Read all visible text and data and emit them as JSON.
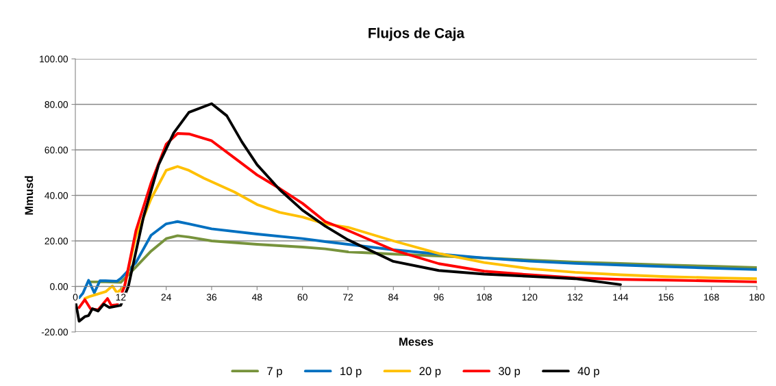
{
  "chart_data": {
    "type": "line",
    "title": "Flujos de Caja",
    "xlabel": "Meses",
    "ylabel": "Mmusd",
    "xlim": [
      0,
      180
    ],
    "xticks": [
      0,
      12,
      24,
      36,
      48,
      60,
      72,
      84,
      96,
      108,
      120,
      132,
      144,
      156,
      168,
      180
    ],
    "ylim": [
      -20,
      100
    ],
    "yticks": [
      {
        "value": -20,
        "label": "-20.00"
      },
      {
        "value": 0,
        "label": "0.00"
      },
      {
        "value": 20,
        "label": "20.00"
      },
      {
        "value": 40,
        "label": "40.00"
      },
      {
        "value": 60,
        "label": "60.00"
      },
      {
        "value": 80,
        "label": "80.00"
      },
      {
        "value": 100,
        "label": "100.00"
      }
    ],
    "grid": "y",
    "legend": "bottom",
    "marker": "none",
    "line_style": "solid",
    "series": [
      {
        "name": "7 p",
        "color": "#77933c",
        "x": [
          4,
          8,
          12,
          16,
          20,
          24,
          27,
          30,
          36,
          48,
          60,
          66,
          72,
          84,
          96,
          108,
          120,
          132,
          144,
          156,
          168,
          180
        ],
        "values": [
          2,
          2,
          1.8,
          8.5,
          15.5,
          21,
          22.3,
          21.7,
          20,
          18.5,
          17.3,
          16.5,
          15.2,
          14.2,
          13.4,
          12.5,
          11.6,
          10.7,
          10.1,
          9.4,
          8.9,
          8.3
        ]
      },
      {
        "name": "10 p",
        "color": "#0070c0",
        "x": [
          0,
          1,
          2,
          3.5,
          5,
          6.5,
          8,
          11,
          12,
          16,
          20,
          24,
          27,
          30,
          36,
          48,
          60,
          66,
          72,
          84,
          96,
          108,
          120,
          132,
          144,
          156,
          168,
          180
        ],
        "values": [
          -5.3,
          -5,
          -3,
          2.7,
          -2.8,
          2.5,
          2.5,
          2.3,
          3.5,
          10.5,
          22.5,
          27.5,
          28.5,
          27.5,
          25.3,
          23,
          21,
          19.7,
          18.5,
          16.1,
          14.2,
          12.5,
          11.1,
          10.1,
          9.4,
          8.7,
          8,
          7.4
        ]
      },
      {
        "name": "20 p",
        "color": "#ffc000",
        "x": [
          2.5,
          4,
          8,
          9.8,
          11,
          13,
          16,
          20,
          24,
          27,
          30,
          34,
          42,
          48,
          54,
          60,
          66,
          72,
          84,
          96,
          108,
          120,
          132,
          144,
          156,
          168,
          180
        ],
        "values": [
          -5.3,
          -4.3,
          -2.3,
          0.2,
          -2.8,
          0,
          22,
          38.5,
          51,
          52.7,
          51,
          47.5,
          41.5,
          36,
          32.5,
          30.5,
          27.5,
          26,
          20,
          14.5,
          10.5,
          7.8,
          6.2,
          5.1,
          4.3,
          3.8,
          3.4
        ]
      },
      {
        "name": "30 p",
        "color": "#ff0000",
        "x": [
          1,
          2.5,
          4,
          6,
          8.5,
          9.5,
          11,
          13,
          16,
          20,
          24,
          27,
          30,
          36,
          42,
          48,
          54,
          60,
          66,
          72,
          84,
          96,
          108,
          120,
          132,
          144,
          156,
          168,
          180
        ],
        "values": [
          -9.3,
          -5.8,
          -9.8,
          -10.3,
          -5.3,
          -8.3,
          -8,
          0,
          24.5,
          45.5,
          62.5,
          67.2,
          67,
          64,
          56.5,
          49,
          43,
          36.5,
          28.5,
          24.6,
          16,
          10,
          6.7,
          5.1,
          3.8,
          3.1,
          2.8,
          2.4,
          2
        ]
      },
      {
        "name": "40 p",
        "color": "#000000",
        "x": [
          0,
          1,
          2.5,
          3.5,
          4.5,
          6,
          7.5,
          9,
          12,
          14,
          18,
          22,
          26,
          30,
          36,
          40,
          44,
          48,
          54,
          60,
          66,
          72,
          84,
          96,
          108,
          120,
          132,
          144
        ],
        "values": [
          -6.3,
          -15.3,
          -13.3,
          -12.8,
          -9.8,
          -10.8,
          -7.8,
          -9.3,
          -8.3,
          0,
          30.5,
          53.5,
          67.5,
          76.5,
          80.3,
          75,
          63.5,
          53.5,
          42.5,
          33.5,
          26.5,
          20.5,
          11,
          7,
          5.4,
          4.4,
          3.4,
          0.8
        ]
      }
    ]
  }
}
